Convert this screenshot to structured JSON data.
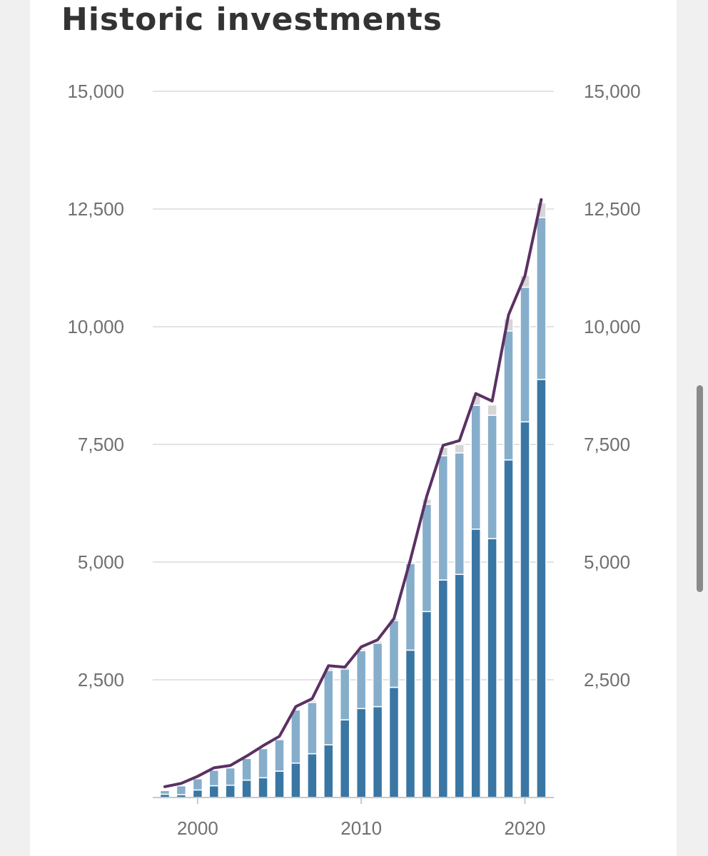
{
  "page": {
    "title": "Historic investments"
  },
  "colors": {
    "background": "#f0f0f0",
    "card": "#ffffff",
    "title": "#333333",
    "series_dark": "#3a76a4",
    "series_light": "#86aecb",
    "series_gray": "#d6d6d6",
    "total_line": "#5b3163",
    "grid": "#e3e3e3",
    "tick_text": "#707070",
    "scrollbar": "#8a8a8a"
  },
  "chart_data": {
    "type": "bar",
    "title": "Historic investments",
    "xlabel": "",
    "ylabel": "",
    "ylim": [
      0,
      15000
    ],
    "y_ticks": [
      "2,500",
      "5,000",
      "7,500",
      "10,000",
      "12,500",
      "15,000"
    ],
    "y_tick_values": [
      2500,
      5000,
      7500,
      10000,
      12500,
      15000
    ],
    "x_ticks": [
      "2000",
      "2010",
      "2020"
    ],
    "x_tick_values": [
      2000,
      2010,
      2020
    ],
    "secondary_y_axis": true,
    "grid": true,
    "stacked": true,
    "categories": [
      1998,
      1999,
      2000,
      2001,
      2002,
      2003,
      2004,
      2005,
      2006,
      2007,
      2008,
      2009,
      2010,
      2011,
      2012,
      2013,
      2014,
      2015,
      2016,
      2017,
      2018,
      2019,
      2020,
      2021
    ],
    "series": [
      {
        "values": [
          70,
          60,
          160,
          250,
          260,
          370,
          420,
          560,
          730,
          930,
          1120,
          1650,
          1890,
          1930,
          2340,
          3130,
          3950,
          4620,
          4740,
          5700,
          5500,
          7170,
          7980,
          8880
        ]
      },
      {
        "values": [
          80,
          190,
          240,
          330,
          370,
          460,
          620,
          670,
          1130,
          1090,
          1580,
          1080,
          1230,
          1350,
          1420,
          1840,
          2280,
          2640,
          2580,
          2630,
          2620,
          2740,
          2860,
          3440
        ]
      },
      {
        "values": [
          20,
          20,
          20,
          20,
          20,
          20,
          20,
          20,
          30,
          40,
          50,
          40,
          40,
          40,
          40,
          40,
          110,
          180,
          180,
          200,
          220,
          260,
          250,
          310
        ]
      }
    ],
    "total_line": [
      230,
      300,
      450,
      630,
      680,
      880,
      1100,
      1300,
      1930,
      2100,
      2800,
      2770,
      3200,
      3350,
      3800,
      5050,
      6400,
      7480,
      7580,
      8580,
      8420,
      10250,
      11080,
      12700
    ]
  }
}
